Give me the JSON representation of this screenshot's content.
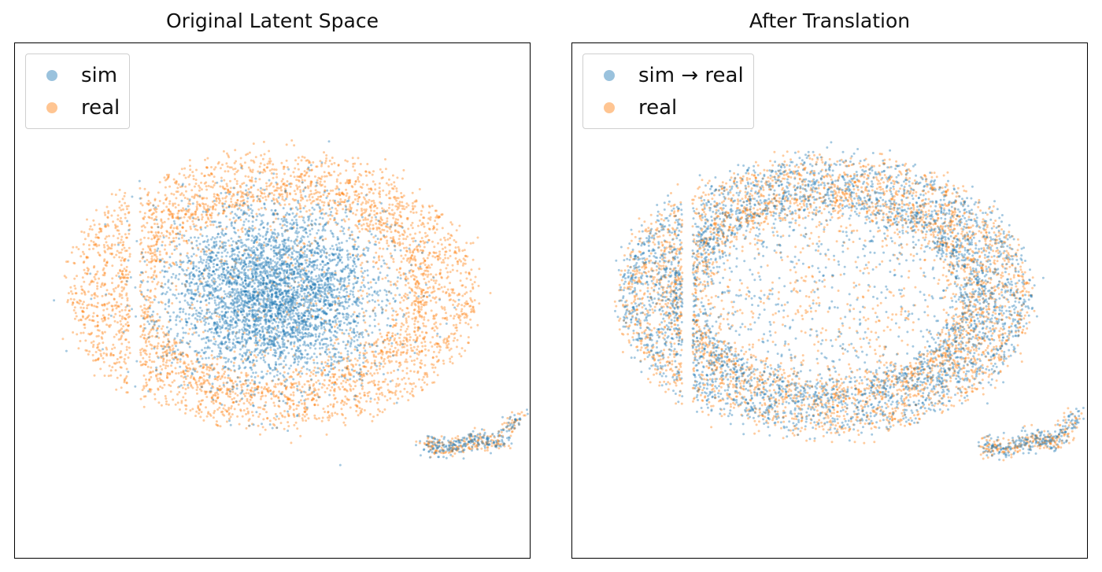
{
  "charts": [
    {
      "title": "Original Latent Space",
      "legend": [
        {
          "label": "sim",
          "color": "#1f77b4"
        },
        {
          "label": "real",
          "color": "#ff7f0e"
        }
      ]
    },
    {
      "title": "After Translation",
      "legend": [
        {
          "label": "sim → real",
          "color": "#1f77b4"
        },
        {
          "label": "real",
          "color": "#ff7f0e"
        }
      ]
    }
  ],
  "chart_data": [
    {
      "type": "scatter",
      "title": "Original Latent Space",
      "xlabel": "",
      "ylabel": "",
      "grid": false,
      "axis_ticks": false,
      "legend_position": "upper-left",
      "series": [
        {
          "name": "sim",
          "color": "#1f77b4",
          "alpha": 0.4,
          "description_clusters": [
            {
              "cx": 0.0,
              "cy": 0.05,
              "rx": 1.0,
              "ry": 0.8,
              "weight": 0.85
            },
            {
              "cx": 1.9,
              "cy": -1.45,
              "rx": 0.3,
              "ry": 0.18,
              "weight": 0.05
            }
          ]
        },
        {
          "name": "real",
          "color": "#ff7f0e",
          "alpha": 0.4,
          "description_clusters": [
            {
              "cx": 0.05,
              "cy": 0.1,
              "rx": 1.85,
              "ry": 1.25,
              "ring": true,
              "weight": 0.9
            },
            {
              "cx": 1.9,
              "cy": -1.45,
              "rx": 0.3,
              "ry": 0.18,
              "weight": 0.05
            }
          ]
        }
      ]
    },
    {
      "type": "scatter",
      "title": "After Translation",
      "xlabel": "",
      "ylabel": "",
      "grid": false,
      "axis_ticks": false,
      "legend_position": "upper-left",
      "series": [
        {
          "name": "sim → real",
          "color": "#1f77b4",
          "alpha": 0.4,
          "description_clusters": [
            {
              "cx": 0.0,
              "cy": 0.05,
              "rx": 1.85,
              "ry": 1.25,
              "ring": true,
              "weight": 0.85
            },
            {
              "cx": 1.9,
              "cy": -1.45,
              "rx": 0.3,
              "ry": 0.18,
              "weight": 0.05
            }
          ]
        },
        {
          "name": "real",
          "color": "#ff7f0e",
          "alpha": 0.4,
          "description_clusters": [
            {
              "cx": 0.0,
              "cy": 0.05,
              "rx": 1.85,
              "ry": 1.25,
              "ring": true,
              "weight": 0.9
            },
            {
              "cx": 1.9,
              "cy": -1.45,
              "rx": 0.3,
              "ry": 0.18,
              "weight": 0.05
            }
          ]
        }
      ]
    }
  ]
}
